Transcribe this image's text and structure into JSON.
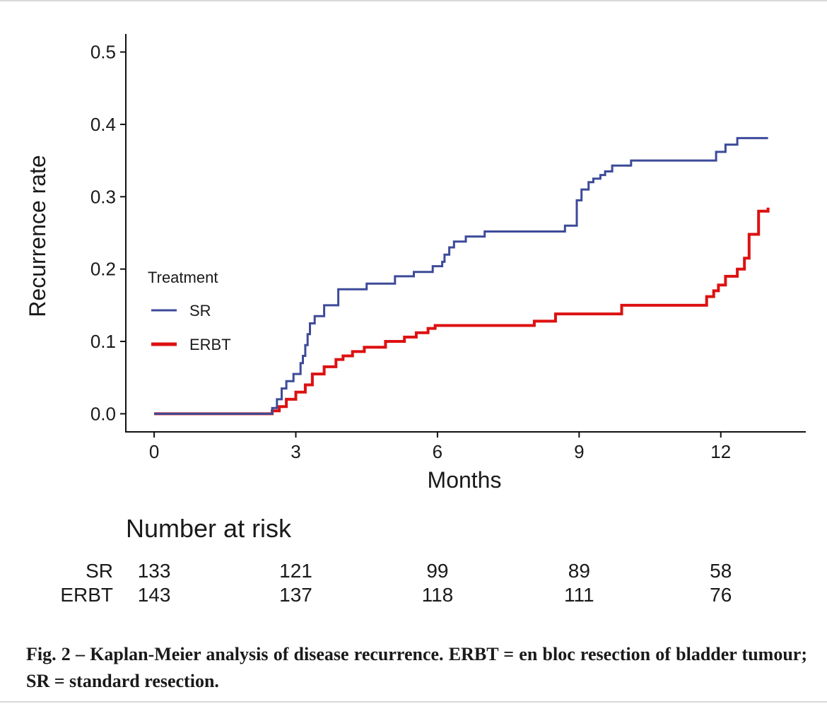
{
  "chart_data": {
    "type": "line",
    "step": true,
    "xlabel": "Months",
    "ylabel": "Recurrence rate",
    "xlim": [
      -0.6,
      13.8
    ],
    "ylim": [
      -0.025,
      0.525
    ],
    "x_ticks": [
      0,
      3,
      6,
      9,
      12
    ],
    "x_tick_labels": [
      "0",
      "3",
      "6",
      "9",
      "12"
    ],
    "y_ticks": [
      0.0,
      0.1,
      0.2,
      0.3,
      0.4,
      0.5
    ],
    "y_tick_labels": [
      "0.0",
      "0.1",
      "0.2",
      "0.3",
      "0.4",
      "0.5"
    ],
    "grid": false,
    "legend": {
      "title": "Treatment",
      "placement": "left",
      "entries": [
        "SR",
        "ERBT"
      ]
    },
    "series": [
      {
        "name": "SR",
        "color": "#3d4a99",
        "x": [
          0,
          2.5,
          2.6,
          2.7,
          2.8,
          2.95,
          3.1,
          3.15,
          3.2,
          3.25,
          3.3,
          3.4,
          3.6,
          3.9,
          4.5,
          5.1,
          5.5,
          5.9,
          6.1,
          6.15,
          6.25,
          6.35,
          6.6,
          7.0,
          8.7,
          8.95,
          9.05,
          9.2,
          9.3,
          9.45,
          9.55,
          9.7,
          10.1,
          11.9,
          12.1,
          12.35,
          13.0
        ],
        "y": [
          0.0,
          0.008,
          0.02,
          0.035,
          0.045,
          0.055,
          0.07,
          0.08,
          0.095,
          0.11,
          0.125,
          0.135,
          0.15,
          0.172,
          0.18,
          0.19,
          0.196,
          0.204,
          0.21,
          0.22,
          0.23,
          0.238,
          0.245,
          0.252,
          0.26,
          0.295,
          0.31,
          0.32,
          0.325,
          0.33,
          0.335,
          0.343,
          0.35,
          0.362,
          0.372,
          0.381,
          0.381
        ]
      },
      {
        "name": "ERBT",
        "color": "#dd1111",
        "x": [
          0,
          2.5,
          2.65,
          2.8,
          3.0,
          3.2,
          3.35,
          3.6,
          3.85,
          4.0,
          4.2,
          4.45,
          4.9,
          5.3,
          5.55,
          5.8,
          5.95,
          8.05,
          8.5,
          9.9,
          11.7,
          11.85,
          11.95,
          12.1,
          12.35,
          12.5,
          12.6,
          12.8,
          13.0
        ],
        "y": [
          0.0,
          0.004,
          0.01,
          0.02,
          0.03,
          0.04,
          0.055,
          0.065,
          0.075,
          0.08,
          0.086,
          0.092,
          0.1,
          0.106,
          0.112,
          0.118,
          0.122,
          0.128,
          0.138,
          0.15,
          0.162,
          0.17,
          0.178,
          0.19,
          0.2,
          0.215,
          0.248,
          0.28,
          0.285
        ]
      }
    ],
    "risk_table": {
      "title": "Number at risk",
      "timepoints": [
        0,
        3,
        6,
        9,
        12
      ],
      "rows": [
        {
          "label": "SR",
          "values": [
            "133",
            "121",
            "99",
            "89",
            "58"
          ]
        },
        {
          "label": "ERBT",
          "values": [
            "143",
            "137",
            "118",
            "111",
            "76"
          ]
        }
      ]
    }
  },
  "caption": "Fig. 2 – Kaplan-Meier analysis of disease recurrence. ERBT = en bloc resection of bladder tumour; SR = standard resection."
}
